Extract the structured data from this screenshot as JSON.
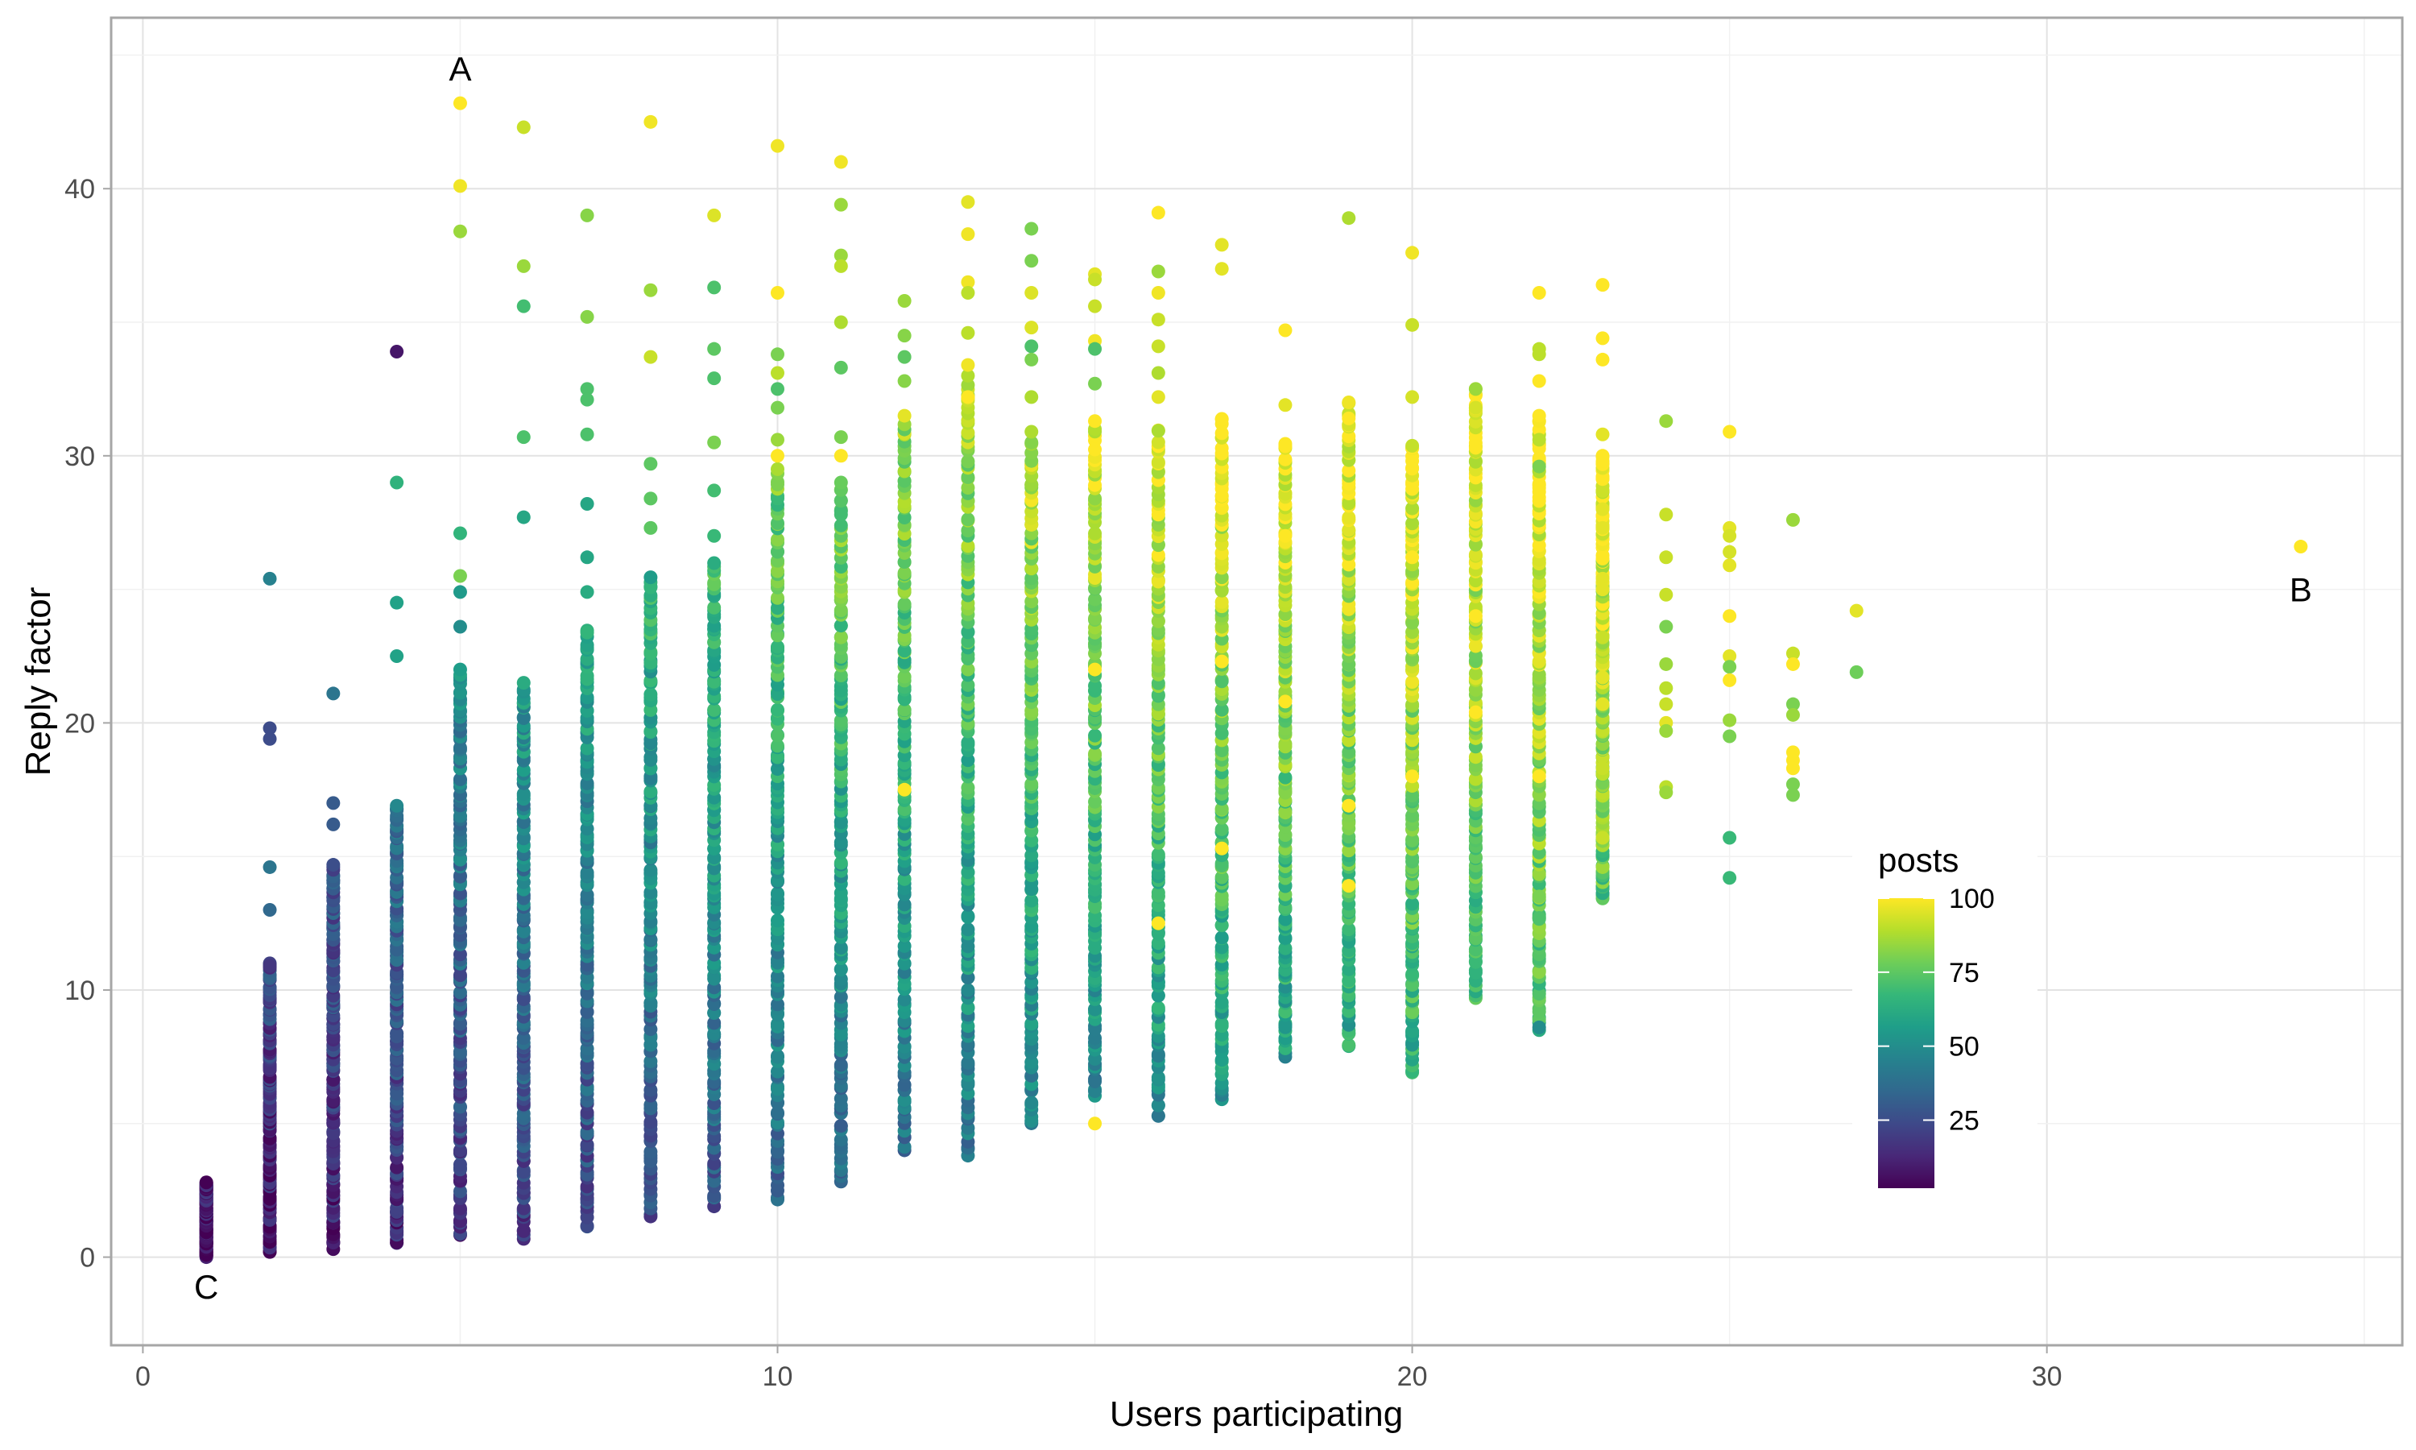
{
  "chart_data": {
    "type": "scatter",
    "title": "",
    "xlabel": "Users participating",
    "ylabel": "Reply factor",
    "xlim": [
      -0.5,
      35.6
    ],
    "ylim": [
      -3.3,
      46.4
    ],
    "x_ticks": [
      0,
      10,
      20,
      30
    ],
    "y_ticks": [
      0,
      10,
      20,
      30,
      40
    ],
    "grid": true,
    "color_scale": {
      "name": "viridis",
      "title": "posts",
      "min": 2,
      "max": 100,
      "ticks": [
        25,
        50,
        75,
        100
      ],
      "stops": [
        "#440154",
        "#482878",
        "#3e4989",
        "#31688e",
        "#26828e",
        "#1f9e89",
        "#35b779",
        "#6ece58",
        "#b5de2b",
        "#fde725"
      ]
    },
    "legend": {
      "position": "right-inside",
      "title": "posts"
    },
    "annotations": [
      {
        "label": "A",
        "x": 5,
        "y": 44.5
      },
      {
        "label": "B",
        "x": 34,
        "y": 25.0
      },
      {
        "label": "C",
        "x": 1,
        "y": -1.1
      }
    ],
    "columns": [
      {
        "x": 1,
        "ymin": 0.0,
        "ymax": 2.8,
        "cmin": 2,
        "cmax": 10
      },
      {
        "x": 2,
        "ymin": 0.1,
        "ymax": 11.0,
        "cmin": 4,
        "cmax": 25
      },
      {
        "x": 3,
        "ymin": 0.3,
        "ymax": 14.7,
        "cmin": 8,
        "cmax": 30
      },
      {
        "x": 4,
        "ymin": 0.4,
        "ymax": 17.0,
        "cmin": 12,
        "cmax": 40
      },
      {
        "x": 5,
        "ymin": 0.7,
        "ymax": 22.0,
        "cmin": 15,
        "cmax": 50
      },
      {
        "x": 6,
        "ymin": 0.6,
        "ymax": 21.5,
        "cmin": 18,
        "cmax": 55
      },
      {
        "x": 7,
        "ymin": 1.1,
        "ymax": 23.5,
        "cmin": 20,
        "cmax": 60
      },
      {
        "x": 8,
        "ymin": 1.5,
        "ymax": 25.5,
        "cmin": 24,
        "cmax": 66
      },
      {
        "x": 9,
        "ymin": 1.9,
        "ymax": 26.0,
        "cmin": 28,
        "cmax": 70
      },
      {
        "x": 10,
        "ymin": 2.1,
        "ymax": 29.5,
        "cmin": 32,
        "cmax": 78
      },
      {
        "x": 11,
        "ymin": 2.8,
        "ymax": 29.0,
        "cmin": 34,
        "cmax": 82
      },
      {
        "x": 12,
        "ymin": 4.0,
        "ymax": 31.5,
        "cmin": 36,
        "cmax": 86
      },
      {
        "x": 13,
        "ymin": 3.8,
        "ymax": 33.0,
        "cmin": 38,
        "cmax": 90
      },
      {
        "x": 14,
        "ymin": 5.0,
        "ymax": 30.5,
        "cmin": 42,
        "cmax": 92
      },
      {
        "x": 15,
        "ymin": 6.0,
        "ymax": 31.0,
        "cmin": 45,
        "cmax": 96
      },
      {
        "x": 16,
        "ymin": 5.2,
        "ymax": 31.0,
        "cmin": 48,
        "cmax": 98
      },
      {
        "x": 17,
        "ymin": 5.8,
        "ymax": 31.5,
        "cmin": 52,
        "cmax": 100
      },
      {
        "x": 18,
        "ymin": 7.5,
        "ymax": 30.5,
        "cmin": 55,
        "cmax": 100
      },
      {
        "x": 19,
        "ymin": 7.9,
        "ymax": 32.0,
        "cmin": 60,
        "cmax": 100
      },
      {
        "x": 20,
        "ymin": 6.9,
        "ymax": 30.5,
        "cmin": 62,
        "cmax": 100
      },
      {
        "x": 21,
        "ymin": 9.6,
        "ymax": 32.5,
        "cmin": 66,
        "cmax": 100
      },
      {
        "x": 22,
        "ymin": 8.5,
        "ymax": 31.5,
        "cmin": 70,
        "cmax": 100
      },
      {
        "x": 23,
        "ymin": 13.3,
        "ymax": 30.0,
        "cmin": 72,
        "cmax": 100
      }
    ],
    "points": [
      {
        "x": 5,
        "y": 43.2,
        "posts": 100
      },
      {
        "x": 5,
        "y": 40.1,
        "posts": 98
      },
      {
        "x": 5,
        "y": 38.4,
        "posts": 85
      },
      {
        "x": 6,
        "y": 42.3,
        "posts": 92
      },
      {
        "x": 6,
        "y": 37.1,
        "posts": 85
      },
      {
        "x": 6,
        "y": 35.6,
        "posts": 70
      },
      {
        "x": 6,
        "y": 30.7,
        "posts": 72
      },
      {
        "x": 6,
        "y": 27.7,
        "posts": 60
      },
      {
        "x": 4,
        "y": 33.9,
        "posts": 8
      },
      {
        "x": 4,
        "y": 29.0,
        "posts": 65
      },
      {
        "x": 4,
        "y": 24.5,
        "posts": 58
      },
      {
        "x": 4,
        "y": 22.5,
        "posts": 58
      },
      {
        "x": 2,
        "y": 25.4,
        "posts": 45
      },
      {
        "x": 2,
        "y": 19.8,
        "posts": 25
      },
      {
        "x": 2,
        "y": 19.4,
        "posts": 25
      },
      {
        "x": 2,
        "y": 14.6,
        "posts": 40
      },
      {
        "x": 2,
        "y": 13.0,
        "posts": 35
      },
      {
        "x": 3,
        "y": 21.1,
        "posts": 40
      },
      {
        "x": 3,
        "y": 17.0,
        "posts": 30
      },
      {
        "x": 3,
        "y": 16.2,
        "posts": 30
      },
      {
        "x": 5,
        "y": 27.1,
        "posts": 66
      },
      {
        "x": 5,
        "y": 25.5,
        "posts": 80
      },
      {
        "x": 5,
        "y": 24.9,
        "posts": 55
      },
      {
        "x": 5,
        "y": 23.6,
        "posts": 50
      },
      {
        "x": 7,
        "y": 39.0,
        "posts": 82
      },
      {
        "x": 7,
        "y": 35.2,
        "posts": 82
      },
      {
        "x": 7,
        "y": 32.5,
        "posts": 72
      },
      {
        "x": 7,
        "y": 32.1,
        "posts": 72
      },
      {
        "x": 7,
        "y": 30.8,
        "posts": 72
      },
      {
        "x": 7,
        "y": 28.2,
        "posts": 60
      },
      {
        "x": 7,
        "y": 26.2,
        "posts": 60
      },
      {
        "x": 7,
        "y": 24.9,
        "posts": 62
      },
      {
        "x": 8,
        "y": 42.5,
        "posts": 98
      },
      {
        "x": 8,
        "y": 36.2,
        "posts": 85
      },
      {
        "x": 8,
        "y": 33.7,
        "posts": 92
      },
      {
        "x": 8,
        "y": 29.7,
        "posts": 75
      },
      {
        "x": 8,
        "y": 28.4,
        "posts": 75
      },
      {
        "x": 8,
        "y": 27.3,
        "posts": 75
      },
      {
        "x": 9,
        "y": 39.0,
        "posts": 95
      },
      {
        "x": 9,
        "y": 36.3,
        "posts": 72
      },
      {
        "x": 9,
        "y": 34.0,
        "posts": 75
      },
      {
        "x": 9,
        "y": 32.9,
        "posts": 72
      },
      {
        "x": 9,
        "y": 30.5,
        "posts": 80
      },
      {
        "x": 9,
        "y": 28.7,
        "posts": 70
      },
      {
        "x": 9,
        "y": 27.0,
        "posts": 68
      },
      {
        "x": 10,
        "y": 41.6,
        "posts": 98
      },
      {
        "x": 10,
        "y": 36.1,
        "posts": 100
      },
      {
        "x": 10,
        "y": 33.8,
        "posts": 80
      },
      {
        "x": 10,
        "y": 33.1,
        "posts": 90
      },
      {
        "x": 10,
        "y": 32.5,
        "posts": 72
      },
      {
        "x": 10,
        "y": 31.8,
        "posts": 80
      },
      {
        "x": 10,
        "y": 30.6,
        "posts": 85
      },
      {
        "x": 10,
        "y": 30.0,
        "posts": 100
      },
      {
        "x": 11,
        "y": 41.0,
        "posts": 98
      },
      {
        "x": 11,
        "y": 39.4,
        "posts": 85
      },
      {
        "x": 11,
        "y": 37.5,
        "posts": 85
      },
      {
        "x": 11,
        "y": 37.1,
        "posts": 90
      },
      {
        "x": 11,
        "y": 35.0,
        "posts": 88
      },
      {
        "x": 11,
        "y": 33.3,
        "posts": 75
      },
      {
        "x": 11,
        "y": 30.7,
        "posts": 80
      },
      {
        "x": 11,
        "y": 30.0,
        "posts": 100
      },
      {
        "x": 12,
        "y": 35.8,
        "posts": 85
      },
      {
        "x": 12,
        "y": 34.5,
        "posts": 82
      },
      {
        "x": 12,
        "y": 33.7,
        "posts": 75
      },
      {
        "x": 12,
        "y": 32.8,
        "posts": 82
      },
      {
        "x": 12,
        "y": 17.5,
        "posts": 100
      },
      {
        "x": 13,
        "y": 39.5,
        "posts": 96
      },
      {
        "x": 13,
        "y": 38.3,
        "posts": 98
      },
      {
        "x": 13,
        "y": 36.5,
        "posts": 98
      },
      {
        "x": 13,
        "y": 36.1,
        "posts": 90
      },
      {
        "x": 13,
        "y": 34.6,
        "posts": 90
      },
      {
        "x": 13,
        "y": 33.4,
        "posts": 98
      },
      {
        "x": 13,
        "y": 32.2,
        "posts": 100
      },
      {
        "x": 14,
        "y": 38.5,
        "posts": 80
      },
      {
        "x": 14,
        "y": 37.3,
        "posts": 80
      },
      {
        "x": 14,
        "y": 36.1,
        "posts": 95
      },
      {
        "x": 14,
        "y": 34.8,
        "posts": 95
      },
      {
        "x": 14,
        "y": 34.1,
        "posts": 72
      },
      {
        "x": 14,
        "y": 33.6,
        "posts": 80
      },
      {
        "x": 14,
        "y": 32.2,
        "posts": 88
      },
      {
        "x": 14,
        "y": 30.9,
        "posts": 88
      },
      {
        "x": 15,
        "y": 36.8,
        "posts": 96
      },
      {
        "x": 15,
        "y": 36.6,
        "posts": 92
      },
      {
        "x": 15,
        "y": 35.6,
        "posts": 92
      },
      {
        "x": 15,
        "y": 34.3,
        "posts": 98
      },
      {
        "x": 15,
        "y": 34.0,
        "posts": 72
      },
      {
        "x": 15,
        "y": 32.7,
        "posts": 80
      },
      {
        "x": 15,
        "y": 31.3,
        "posts": 100
      },
      {
        "x": 15,
        "y": 22.0,
        "posts": 100
      },
      {
        "x": 15,
        "y": 5.0,
        "posts": 100
      },
      {
        "x": 16,
        "y": 39.1,
        "posts": 100
      },
      {
        "x": 16,
        "y": 36.9,
        "posts": 85
      },
      {
        "x": 16,
        "y": 36.1,
        "posts": 98
      },
      {
        "x": 16,
        "y": 35.1,
        "posts": 92
      },
      {
        "x": 16,
        "y": 34.1,
        "posts": 92
      },
      {
        "x": 16,
        "y": 33.1,
        "posts": 88
      },
      {
        "x": 16,
        "y": 32.2,
        "posts": 96
      },
      {
        "x": 16,
        "y": 12.5,
        "posts": 100
      },
      {
        "x": 17,
        "y": 37.9,
        "posts": 96
      },
      {
        "x": 17,
        "y": 37.0,
        "posts": 96
      },
      {
        "x": 17,
        "y": 28.5,
        "posts": 100
      },
      {
        "x": 17,
        "y": 22.3,
        "posts": 100
      },
      {
        "x": 17,
        "y": 15.3,
        "posts": 100
      },
      {
        "x": 18,
        "y": 34.7,
        "posts": 100
      },
      {
        "x": 18,
        "y": 31.9,
        "posts": 96
      },
      {
        "x": 18,
        "y": 27.0,
        "posts": 100
      },
      {
        "x": 18,
        "y": 20.8,
        "posts": 100
      },
      {
        "x": 19,
        "y": 38.9,
        "posts": 88
      },
      {
        "x": 19,
        "y": 31.4,
        "posts": 100
      },
      {
        "x": 19,
        "y": 16.9,
        "posts": 100
      },
      {
        "x": 19,
        "y": 13.9,
        "posts": 100
      },
      {
        "x": 20,
        "y": 37.6,
        "posts": 98
      },
      {
        "x": 20,
        "y": 34.9,
        "posts": 92
      },
      {
        "x": 20,
        "y": 32.2,
        "posts": 94
      },
      {
        "x": 20,
        "y": 26.2,
        "posts": 100
      },
      {
        "x": 20,
        "y": 18.0,
        "posts": 100
      },
      {
        "x": 21,
        "y": 32.5,
        "posts": 85
      },
      {
        "x": 21,
        "y": 31.8,
        "posts": 94
      },
      {
        "x": 21,
        "y": 30.3,
        "posts": 100
      },
      {
        "x": 21,
        "y": 24.0,
        "posts": 100
      },
      {
        "x": 21,
        "y": 20.4,
        "posts": 100
      },
      {
        "x": 22,
        "y": 36.1,
        "posts": 100
      },
      {
        "x": 22,
        "y": 34.0,
        "posts": 90
      },
      {
        "x": 22,
        "y": 33.8,
        "posts": 90
      },
      {
        "x": 22,
        "y": 32.8,
        "posts": 100
      },
      {
        "x": 22,
        "y": 30.6,
        "posts": 90
      },
      {
        "x": 22,
        "y": 29.6,
        "posts": 80
      },
      {
        "x": 22,
        "y": 28.8,
        "posts": 100
      },
      {
        "x": 22,
        "y": 18.0,
        "posts": 100
      },
      {
        "x": 22,
        "y": 13.5,
        "posts": 80
      },
      {
        "x": 22,
        "y": 12.7,
        "posts": 72
      },
      {
        "x": 22,
        "y": 8.6,
        "posts": 50
      },
      {
        "x": 23,
        "y": 36.4,
        "posts": 100
      },
      {
        "x": 23,
        "y": 34.4,
        "posts": 100
      },
      {
        "x": 23,
        "y": 33.6,
        "posts": 100
      },
      {
        "x": 23,
        "y": 30.8,
        "posts": 96
      },
      {
        "x": 23,
        "y": 29.8,
        "posts": 100
      },
      {
        "x": 23,
        "y": 28.0,
        "posts": 96
      },
      {
        "x": 23,
        "y": 27.3,
        "posts": 96
      },
      {
        "x": 23,
        "y": 25.4,
        "posts": 96
      },
      {
        "x": 23,
        "y": 25.0,
        "posts": 96
      },
      {
        "x": 23,
        "y": 23.2,
        "posts": 92
      },
      {
        "x": 23,
        "y": 21.7,
        "posts": 96
      },
      {
        "x": 23,
        "y": 20.7,
        "posts": 96
      },
      {
        "x": 23,
        "y": 18.3,
        "posts": 92
      },
      {
        "x": 23,
        "y": 15.7,
        "posts": 92
      },
      {
        "x": 24,
        "y": 31.3,
        "posts": 85
      },
      {
        "x": 24,
        "y": 27.8,
        "posts": 92
      },
      {
        "x": 24,
        "y": 26.2,
        "posts": 92
      },
      {
        "x": 24,
        "y": 24.8,
        "posts": 92
      },
      {
        "x": 24,
        "y": 23.6,
        "posts": 80
      },
      {
        "x": 24,
        "y": 22.2,
        "posts": 85
      },
      {
        "x": 24,
        "y": 21.3,
        "posts": 90
      },
      {
        "x": 24,
        "y": 20.7,
        "posts": 92
      },
      {
        "x": 24,
        "y": 20.0,
        "posts": 96
      },
      {
        "x": 24,
        "y": 19.7,
        "posts": 85
      },
      {
        "x": 24,
        "y": 17.6,
        "posts": 90
      },
      {
        "x": 24,
        "y": 17.4,
        "posts": 85
      },
      {
        "x": 25,
        "y": 30.9,
        "posts": 100
      },
      {
        "x": 25,
        "y": 27.3,
        "posts": 96
      },
      {
        "x": 25,
        "y": 27.0,
        "posts": 94
      },
      {
        "x": 25,
        "y": 26.4,
        "posts": 94
      },
      {
        "x": 25,
        "y": 25.9,
        "posts": 96
      },
      {
        "x": 25,
        "y": 24.0,
        "posts": 100
      },
      {
        "x": 25,
        "y": 22.5,
        "posts": 96
      },
      {
        "x": 25,
        "y": 22.1,
        "posts": 80
      },
      {
        "x": 25,
        "y": 21.6,
        "posts": 100
      },
      {
        "x": 25,
        "y": 20.1,
        "posts": 85
      },
      {
        "x": 25,
        "y": 19.5,
        "posts": 80
      },
      {
        "x": 25,
        "y": 15.7,
        "posts": 68
      },
      {
        "x": 25,
        "y": 14.2,
        "posts": 68
      },
      {
        "x": 26,
        "y": 27.6,
        "posts": 85
      },
      {
        "x": 26,
        "y": 22.6,
        "posts": 92
      },
      {
        "x": 26,
        "y": 22.2,
        "posts": 100
      },
      {
        "x": 26,
        "y": 20.7,
        "posts": 80
      },
      {
        "x": 26,
        "y": 20.3,
        "posts": 85
      },
      {
        "x": 26,
        "y": 18.9,
        "posts": 100
      },
      {
        "x": 26,
        "y": 18.6,
        "posts": 100
      },
      {
        "x": 26,
        "y": 18.3,
        "posts": 100
      },
      {
        "x": 26,
        "y": 17.7,
        "posts": 80
      },
      {
        "x": 26,
        "y": 17.3,
        "posts": 80
      },
      {
        "x": 27,
        "y": 24.2,
        "posts": 96
      },
      {
        "x": 27,
        "y": 21.9,
        "posts": 78
      },
      {
        "x": 34,
        "y": 26.6,
        "posts": 100
      }
    ]
  }
}
